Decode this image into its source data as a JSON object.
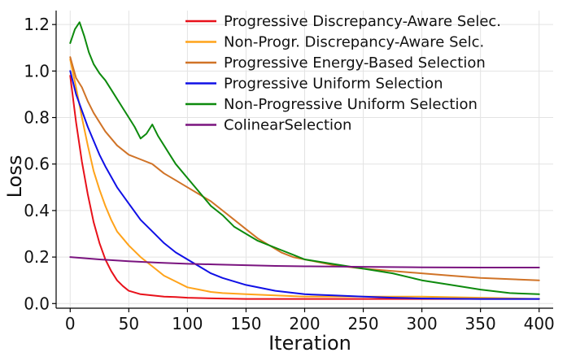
{
  "chart_data": {
    "type": "line",
    "title": "",
    "xlabel": "Iteration",
    "ylabel": "Loss",
    "xlim": [
      -12,
      412
    ],
    "ylim": [
      -0.02,
      1.26
    ],
    "xticks": [
      0,
      50,
      100,
      150,
      200,
      250,
      300,
      350,
      400
    ],
    "xtick_labels": [
      "0",
      "50",
      "100",
      "150",
      "200",
      "250",
      "300",
      "350",
      "400"
    ],
    "yticks": [
      0.0,
      0.2,
      0.4,
      0.6,
      0.8,
      1.0,
      1.2
    ],
    "ytick_labels": [
      "0.0",
      "0.2",
      "0.4",
      "0.6",
      "0.8",
      "1.0",
      "1.2"
    ],
    "grid": true,
    "legend_position": "top-right",
    "series": [
      {
        "name": "Progressive Discrepancy-Aware Selec.",
        "color": "#e8111a",
        "x": [
          0,
          5,
          10,
          15,
          20,
          25,
          30,
          35,
          40,
          45,
          50,
          60,
          70,
          80,
          90,
          100,
          125,
          150,
          175,
          200,
          250,
          300,
          350,
          400
        ],
        "y": [
          0.98,
          0.78,
          0.61,
          0.47,
          0.35,
          0.26,
          0.19,
          0.14,
          0.1,
          0.075,
          0.055,
          0.04,
          0.035,
          0.03,
          0.028,
          0.025,
          0.022,
          0.02,
          0.02,
          0.02,
          0.02,
          0.02,
          0.02,
          0.02
        ]
      },
      {
        "name": "Non-Progr. Discrepancy-Aware Selc.",
        "color": "#ffa31a",
        "x": [
          0,
          5,
          10,
          15,
          20,
          25,
          30,
          35,
          40,
          45,
          50,
          60,
          70,
          80,
          90,
          100,
          110,
          120,
          130,
          150,
          175,
          200,
          250,
          300,
          350,
          400
        ],
        "y": [
          1.05,
          0.93,
          0.8,
          0.68,
          0.57,
          0.49,
          0.42,
          0.36,
          0.31,
          0.28,
          0.25,
          0.2,
          0.16,
          0.12,
          0.095,
          0.07,
          0.06,
          0.05,
          0.045,
          0.04,
          0.035,
          0.03,
          0.03,
          0.03,
          0.025,
          0.02
        ]
      },
      {
        "name": "Progressive Energy-Based Selection",
        "color": "#d07327",
        "x": [
          0,
          5,
          10,
          15,
          20,
          25,
          30,
          40,
          50,
          60,
          70,
          80,
          90,
          100,
          110,
          120,
          130,
          140,
          150,
          160,
          170,
          180,
          190,
          200,
          225,
          250,
          275,
          300,
          325,
          350,
          375,
          400
        ],
        "y": [
          1.06,
          0.97,
          0.93,
          0.87,
          0.82,
          0.78,
          0.74,
          0.68,
          0.64,
          0.62,
          0.6,
          0.56,
          0.53,
          0.5,
          0.47,
          0.44,
          0.4,
          0.36,
          0.32,
          0.28,
          0.25,
          0.22,
          0.2,
          0.19,
          0.165,
          0.15,
          0.14,
          0.13,
          0.12,
          0.11,
          0.105,
          0.1
        ]
      },
      {
        "name": "Progressive Uniform Selection",
        "color": "#1010e6",
        "x": [
          0,
          5,
          10,
          15,
          20,
          25,
          30,
          40,
          50,
          60,
          70,
          80,
          90,
          100,
          110,
          120,
          130,
          150,
          175,
          200,
          225,
          250,
          275,
          300,
          350,
          400
        ],
        "y": [
          1.0,
          0.9,
          0.83,
          0.76,
          0.7,
          0.64,
          0.59,
          0.5,
          0.43,
          0.36,
          0.31,
          0.26,
          0.22,
          0.19,
          0.16,
          0.13,
          0.11,
          0.08,
          0.055,
          0.04,
          0.035,
          0.03,
          0.025,
          0.022,
          0.02,
          0.02
        ]
      },
      {
        "name": "Non-Progressive Uniform Selection",
        "color": "#0d8a0d",
        "x": [
          0,
          4,
          8,
          12,
          16,
          20,
          25,
          30,
          35,
          40,
          45,
          50,
          55,
          60,
          65,
          70,
          75,
          80,
          85,
          90,
          100,
          110,
          120,
          130,
          140,
          150,
          160,
          170,
          180,
          190,
          200,
          225,
          250,
          275,
          300,
          325,
          350,
          375,
          400
        ],
        "y": [
          1.12,
          1.18,
          1.21,
          1.15,
          1.08,
          1.03,
          0.99,
          0.96,
          0.92,
          0.88,
          0.84,
          0.8,
          0.76,
          0.71,
          0.73,
          0.77,
          0.72,
          0.68,
          0.64,
          0.6,
          0.54,
          0.48,
          0.42,
          0.38,
          0.33,
          0.3,
          0.27,
          0.25,
          0.23,
          0.21,
          0.19,
          0.17,
          0.15,
          0.13,
          0.1,
          0.08,
          0.06,
          0.045,
          0.04
        ]
      },
      {
        "name": "ColinearSelection",
        "color": "#7a147f",
        "x": [
          0,
          25,
          50,
          75,
          100,
          125,
          150,
          175,
          200,
          250,
          300,
          350,
          400
        ],
        "y": [
          0.2,
          0.19,
          0.182,
          0.176,
          0.171,
          0.168,
          0.165,
          0.162,
          0.16,
          0.158,
          0.156,
          0.155,
          0.155
        ]
      }
    ]
  }
}
